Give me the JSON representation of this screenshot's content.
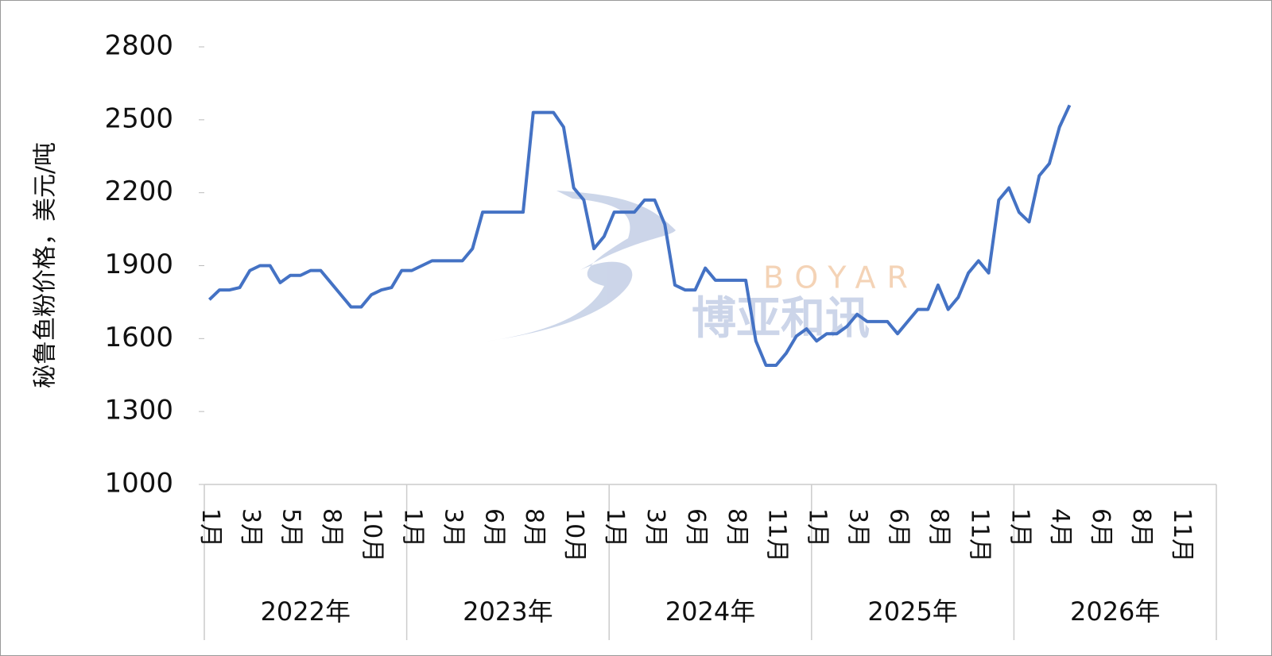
{
  "chart_data": {
    "type": "line",
    "y_label": "秘鲁鱼粉价格，美元/吨",
    "ylim": [
      1000,
      2800
    ],
    "yticks": [
      1000,
      1300,
      1600,
      1900,
      2200,
      2500,
      2800
    ],
    "color": "#4472c4",
    "watermark": {
      "latin": "BOYAR",
      "chinese": "博亚和讯"
    },
    "groups": [
      {
        "name": "2022年",
        "categories": [
          "1月",
          null,
          null,
          null,
          "3月",
          null,
          null,
          null,
          "5月",
          null,
          null,
          null,
          "8月",
          null,
          null,
          null,
          "10月",
          null,
          null,
          null
        ],
        "values": [
          1760,
          1800,
          1800,
          1810,
          1880,
          1900,
          1900,
          1830,
          1860,
          1860,
          1880,
          1880,
          1830,
          1780,
          1730,
          1730,
          1780,
          1800,
          1810,
          1880
        ]
      },
      {
        "name": "2023年",
        "categories": [
          "1月",
          null,
          null,
          null,
          "3月",
          null,
          null,
          null,
          "6月",
          null,
          null,
          null,
          "8月",
          null,
          null,
          null,
          "10月",
          null,
          null,
          null
        ],
        "values": [
          1880,
          1900,
          1920,
          1920,
          1920,
          1920,
          1970,
          2120,
          2120,
          2120,
          2120,
          2120,
          2530,
          2530,
          2530,
          2470,
          2220,
          2170,
          1970,
          2020
        ]
      },
      {
        "name": "2024年",
        "categories": [
          "1月",
          null,
          null,
          null,
          "3月",
          null,
          null,
          null,
          "6月",
          null,
          null,
          null,
          "8月",
          null,
          null,
          null,
          "11月",
          null,
          null,
          null
        ],
        "values": [
          2120,
          2120,
          2120,
          2170,
          2170,
          2070,
          1820,
          1800,
          1800,
          1890,
          1840,
          1840,
          1840,
          1840,
          1590,
          1490,
          1490,
          1540,
          1610,
          1640
        ]
      },
      {
        "name": "2025年",
        "categories": [
          "1月",
          null,
          null,
          null,
          "3月",
          null,
          null,
          null,
          "6月",
          null,
          null,
          null,
          "8月",
          null,
          null,
          null,
          "11月",
          null,
          null,
          null
        ],
        "values": [
          1590,
          1620,
          1620,
          1650,
          1700,
          1670,
          1670,
          1670,
          1620,
          1670,
          1720,
          1720,
          1820,
          1720,
          1770,
          1870,
          1920,
          1870,
          2170,
          2220
        ]
      },
      {
        "name": "2026年",
        "categories": [
          "1月",
          null,
          null,
          null,
          "4月",
          null,
          null,
          null,
          "6月",
          null,
          null,
          null,
          "8月",
          null,
          null,
          null,
          "11月",
          null,
          null,
          null
        ],
        "values": [
          2120,
          2080,
          2270,
          2320,
          2470,
          2560,
          null,
          null,
          null,
          null,
          null,
          null,
          null,
          null,
          null,
          null,
          null,
          null,
          null,
          null
        ]
      }
    ]
  }
}
